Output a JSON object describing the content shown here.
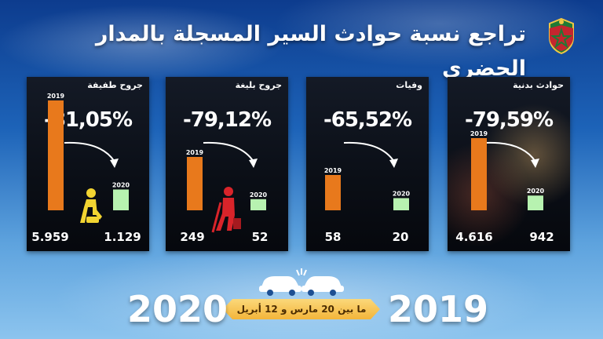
{
  "title": "تراجع نسبة حوادث السير المسجلة بالمدار الحضري",
  "colors": {
    "bar_2019": "#e8791c",
    "bar_2020": "#b7f2b0",
    "panel_bg": "#0b0f17",
    "accent_banner": "#f3b53a"
  },
  "icons": {
    "emblem": "police-emblem-icon",
    "light_injury": "injured-person-icon",
    "serious_injury": "injured-person-crutch-icon",
    "cars": "car-crash-icon"
  },
  "chart_data": [
    {
      "type": "bar",
      "title": "جروح طفيفة",
      "categories": [
        "2019",
        "2020"
      ],
      "values": [
        5959,
        1129
      ],
      "value_labels": [
        "5.959",
        "1.129"
      ],
      "change_label": "-81,05%"
    },
    {
      "type": "bar",
      "title": "جروح بليغة",
      "categories": [
        "2019",
        "2020"
      ],
      "values": [
        249,
        52
      ],
      "value_labels": [
        "249",
        "52"
      ],
      "change_label": "-79,12%"
    },
    {
      "type": "bar",
      "title": "وفيات",
      "categories": [
        "2019",
        "2020"
      ],
      "values": [
        58,
        20
      ],
      "value_labels": [
        "58",
        "20"
      ],
      "change_label": "-65,52%"
    },
    {
      "type": "bar",
      "title": "حوادث بدنية",
      "categories": [
        "2019",
        "2020"
      ],
      "values": [
        4616,
        942
      ],
      "value_labels": [
        "4.616",
        "942"
      ],
      "change_label": "-79,59%"
    }
  ],
  "footer": {
    "year_left": "2020",
    "year_right": "2019",
    "period": "ما بين 20 مارس و 12 أبريل"
  }
}
